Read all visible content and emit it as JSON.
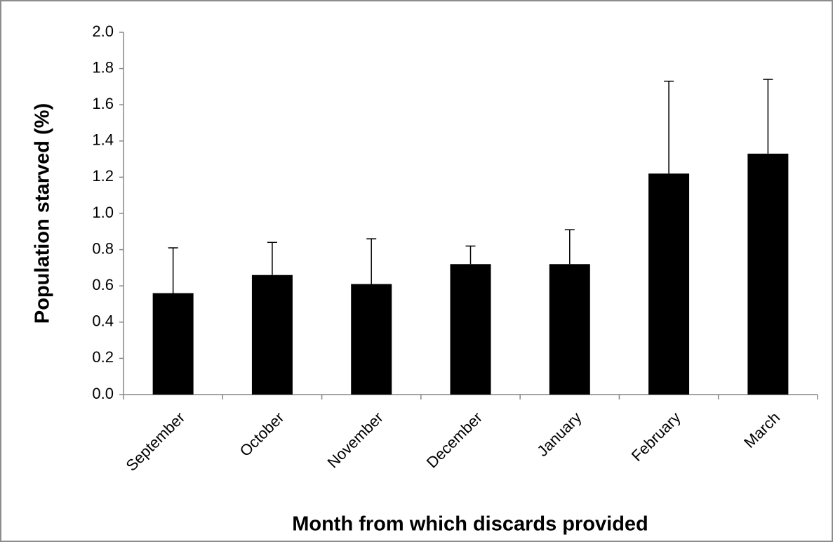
{
  "chart_data": {
    "type": "bar",
    "x_label": "Month from which discards provided",
    "y_label": "Population starved (%)",
    "categories": [
      "September",
      "October",
      "November",
      "December",
      "January",
      "February",
      "March"
    ],
    "values": [
      0.56,
      0.66,
      0.61,
      0.72,
      0.72,
      1.22,
      1.33
    ],
    "errors": [
      0.25,
      0.18,
      0.25,
      0.1,
      0.19,
      0.51,
      0.41
    ],
    "color": "#000000",
    "ylim": [
      0,
      2
    ],
    "yticks": [
      {
        "value": 0,
        "label": "0.0"
      },
      0.2,
      0.4,
      0.6,
      0.8,
      {
        "value": 1,
        "label": "1.0"
      },
      1.2,
      1.4,
      1.6,
      1.8,
      {
        "value": 2,
        "label": "2.0"
      }
    ],
    "grid": false
  }
}
